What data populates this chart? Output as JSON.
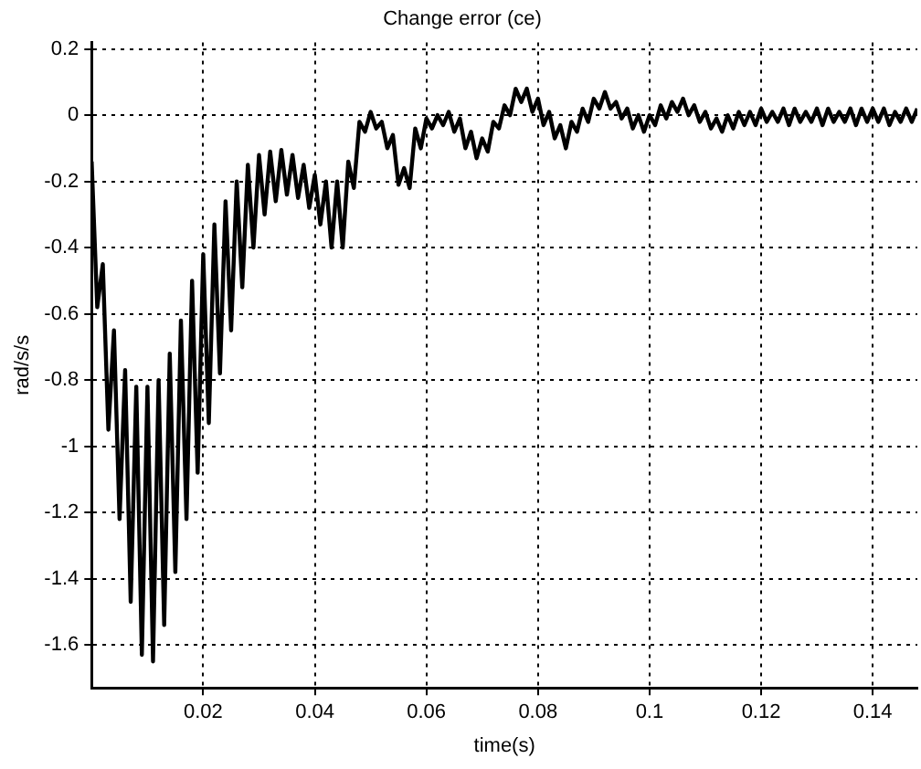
{
  "chart_data": {
    "type": "line",
    "title": "Change error (ce)",
    "xlabel": "time(s)",
    "ylabel": "rad/s/s",
    "xlim": [
      0,
      0.148
    ],
    "ylim": [
      -1.73,
      0.22
    ],
    "xticks": [
      0.02,
      0.04,
      0.06,
      0.08,
      0.1,
      0.12,
      0.14
    ],
    "yticks": [
      -1.6,
      -1.4,
      -1.2,
      -1,
      -0.8,
      -0.6,
      -0.4,
      -0.2,
      0,
      0.2
    ],
    "grid": true,
    "legend": false,
    "marker": "none",
    "line_style": "solid",
    "x": [
      0,
      0.001,
      0.002,
      0.003,
      0.004,
      0.005,
      0.006,
      0.007,
      0.008,
      0.009,
      0.01,
      0.011,
      0.012,
      0.013,
      0.014,
      0.015,
      0.016,
      0.017,
      0.018,
      0.019,
      0.02,
      0.021,
      0.022,
      0.023,
      0.024,
      0.025,
      0.026,
      0.027,
      0.028,
      0.029,
      0.03,
      0.031,
      0.032,
      0.033,
      0.034,
      0.035,
      0.036,
      0.037,
      0.038,
      0.039,
      0.04,
      0.041,
      0.042,
      0.043,
      0.044,
      0.045,
      0.046,
      0.047,
      0.048,
      0.049,
      0.05,
      0.051,
      0.052,
      0.053,
      0.054,
      0.055,
      0.056,
      0.057,
      0.058,
      0.059,
      0.06,
      0.061,
      0.062,
      0.063,
      0.064,
      0.065,
      0.066,
      0.067,
      0.068,
      0.069,
      0.07,
      0.071,
      0.072,
      0.073,
      0.074,
      0.075,
      0.076,
      0.077,
      0.078,
      0.079,
      0.08,
      0.081,
      0.082,
      0.083,
      0.084,
      0.085,
      0.086,
      0.087,
      0.088,
      0.089,
      0.09,
      0.091,
      0.092,
      0.093,
      0.094,
      0.095,
      0.096,
      0.097,
      0.098,
      0.099,
      0.1,
      0.101,
      0.102,
      0.103,
      0.104,
      0.105,
      0.106,
      0.107,
      0.108,
      0.109,
      0.11,
      0.111,
      0.112,
      0.113,
      0.114,
      0.115,
      0.116,
      0.117,
      0.118,
      0.119,
      0.12,
      0.121,
      0.122,
      0.123,
      0.124,
      0.125,
      0.126,
      0.127,
      0.128,
      0.129,
      0.13,
      0.131,
      0.132,
      0.133,
      0.134,
      0.135,
      0.136,
      0.137,
      0.138,
      0.139,
      0.14,
      0.141,
      0.142,
      0.143,
      0.144,
      0.145,
      0.146,
      0.147,
      0.148
    ],
    "series": [
      {
        "color": "#000000",
        "values": [
          -0.14,
          -0.58,
          -0.45,
          -0.95,
          -0.65,
          -1.22,
          -0.77,
          -1.47,
          -0.82,
          -1.63,
          -0.82,
          -1.65,
          -0.8,
          -1.54,
          -0.72,
          -1.38,
          -0.62,
          -1.22,
          -0.5,
          -1.08,
          -0.42,
          -0.93,
          -0.33,
          -0.78,
          -0.26,
          -0.65,
          -0.2,
          -0.52,
          -0.15,
          -0.4,
          -0.12,
          -0.3,
          -0.11,
          -0.26,
          -0.105,
          -0.24,
          -0.12,
          -0.25,
          -0.15,
          -0.28,
          -0.18,
          -0.33,
          -0.2,
          -0.4,
          -0.2,
          -0.4,
          -0.14,
          -0.22,
          -0.02,
          -0.05,
          0.01,
          -0.04,
          -0.02,
          -0.1,
          -0.06,
          -0.21,
          -0.16,
          -0.22,
          -0.04,
          -0.1,
          -0.01,
          -0.04,
          0.0,
          -0.03,
          0.01,
          -0.05,
          -0.01,
          -0.1,
          -0.05,
          -0.13,
          -0.07,
          -0.11,
          -0.02,
          -0.04,
          0.03,
          0.0,
          0.08,
          0.04,
          0.08,
          0.01,
          0.05,
          -0.03,
          0.01,
          -0.07,
          -0.03,
          -0.1,
          -0.02,
          -0.05,
          0.02,
          -0.02,
          0.05,
          0.02,
          0.07,
          0.02,
          0.04,
          -0.01,
          0.02,
          -0.04,
          0.0,
          -0.05,
          0.0,
          -0.03,
          0.03,
          -0.01,
          0.04,
          0.01,
          0.05,
          0.0,
          0.03,
          -0.02,
          0.01,
          -0.04,
          -0.01,
          -0.05,
          0.0,
          -0.04,
          0.01,
          -0.03,
          0.01,
          -0.03,
          0.02,
          -0.02,
          0.01,
          -0.02,
          0.02,
          -0.03,
          0.02,
          -0.02,
          0.01,
          -0.02,
          0.02,
          -0.03,
          0.02,
          -0.02,
          0.01,
          -0.02,
          0.02,
          -0.03,
          0.02,
          -0.02,
          0.02,
          -0.02,
          0.02,
          -0.03,
          0.01,
          -0.02,
          0.02,
          -0.02,
          0.02
        ]
      }
    ]
  }
}
